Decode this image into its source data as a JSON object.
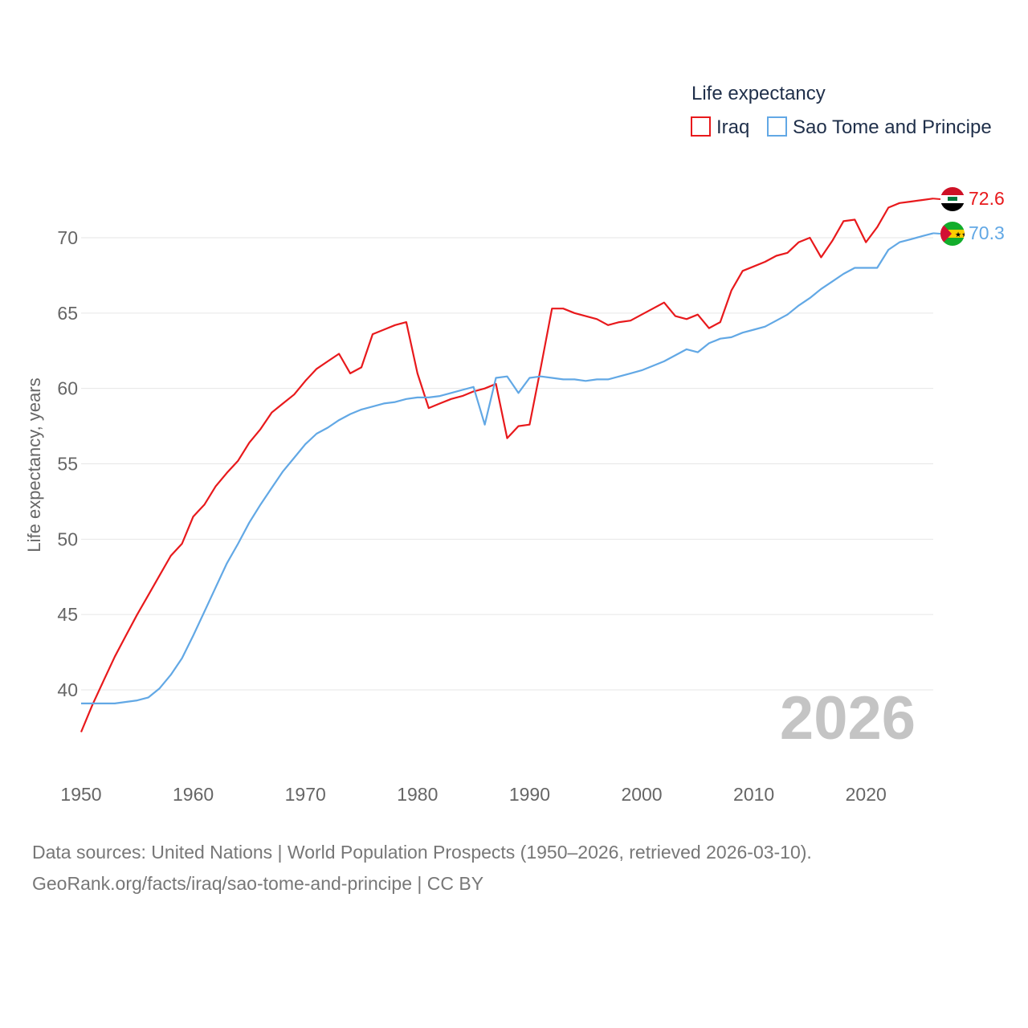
{
  "chart_data": {
    "type": "line",
    "legend_title": "Life expectancy",
    "ylabel": "Life expectancy, years",
    "xlim": [
      1950,
      2026
    ],
    "ylim": [
      35,
      73
    ],
    "yticks": [
      40,
      45,
      50,
      55,
      60,
      65,
      70
    ],
    "xticks": [
      1950,
      1960,
      1970,
      1980,
      1990,
      2000,
      2010,
      2020
    ],
    "year_label": "2026",
    "x": [
      1950,
      1951,
      1952,
      1953,
      1954,
      1955,
      1956,
      1957,
      1958,
      1959,
      1960,
      1961,
      1962,
      1963,
      1964,
      1965,
      1966,
      1967,
      1968,
      1969,
      1970,
      1971,
      1972,
      1973,
      1974,
      1975,
      1976,
      1977,
      1978,
      1979,
      1980,
      1981,
      1982,
      1983,
      1984,
      1985,
      1986,
      1987,
      1988,
      1989,
      1990,
      1991,
      1992,
      1993,
      1994,
      1995,
      1996,
      1997,
      1998,
      1999,
      2000,
      2001,
      2002,
      2003,
      2004,
      2005,
      2006,
      2007,
      2008,
      2009,
      2010,
      2011,
      2012,
      2013,
      2014,
      2015,
      2016,
      2017,
      2018,
      2019,
      2020,
      2021,
      2022,
      2023,
      2024,
      2025,
      2026
    ],
    "series": [
      {
        "name": "Iraq",
        "color": "#e8191c",
        "end_label": "72.6",
        "flag": "iraq-flag-icon",
        "values": [
          37.2,
          39.0,
          40.6,
          42.2,
          43.6,
          45.0,
          46.3,
          47.6,
          48.9,
          49.7,
          51.5,
          52.3,
          53.5,
          54.4,
          55.2,
          56.4,
          57.3,
          58.4,
          59.0,
          59.6,
          60.5,
          61.3,
          61.8,
          62.3,
          61.0,
          61.4,
          63.6,
          63.9,
          64.2,
          64.4,
          61.0,
          58.7,
          59.0,
          59.3,
          59.5,
          59.8,
          60.0,
          60.3,
          56.7,
          57.5,
          57.6,
          61.4,
          65.3,
          65.3,
          65.0,
          64.8,
          64.6,
          64.2,
          64.4,
          64.5,
          64.9,
          65.3,
          65.7,
          64.8,
          64.6,
          64.9,
          64.0,
          64.4,
          66.5,
          67.8,
          68.1,
          68.4,
          68.8,
          69.0,
          69.7,
          70.0,
          68.7,
          69.8,
          71.1,
          71.2,
          69.7,
          70.7,
          72.0,
          72.3,
          72.4,
          72.5,
          72.6
        ]
      },
      {
        "name": "Sao Tome and Principe",
        "color": "#62a8e5",
        "end_label": "70.3",
        "flag": "sao-tome-flag-icon",
        "values": [
          39.1,
          39.1,
          39.1,
          39.1,
          39.2,
          39.3,
          39.5,
          40.1,
          41.0,
          42.1,
          43.6,
          45.2,
          46.8,
          48.4,
          49.7,
          51.1,
          52.3,
          53.4,
          54.5,
          55.4,
          56.3,
          57.0,
          57.4,
          57.9,
          58.3,
          58.6,
          58.8,
          59.0,
          59.1,
          59.3,
          59.4,
          59.4,
          59.5,
          59.7,
          59.9,
          60.1,
          57.6,
          60.7,
          60.8,
          59.7,
          60.7,
          60.8,
          60.7,
          60.6,
          60.6,
          60.5,
          60.6,
          60.6,
          60.8,
          61.0,
          61.2,
          61.5,
          61.8,
          62.2,
          62.6,
          62.4,
          63.0,
          63.3,
          63.4,
          63.7,
          63.9,
          64.1,
          64.5,
          64.9,
          65.5,
          66.0,
          66.6,
          67.1,
          67.6,
          68.0,
          68.0,
          68.0,
          69.2,
          69.7,
          69.9,
          70.1,
          70.3
        ]
      }
    ]
  },
  "source": {
    "line1": "Data sources: United Nations | World Population Prospects (1950–2026, retrieved 2026-03-10).",
    "line2": "GeoRank.org/facts/iraq/sao-tome-and-principe | CC BY"
  }
}
